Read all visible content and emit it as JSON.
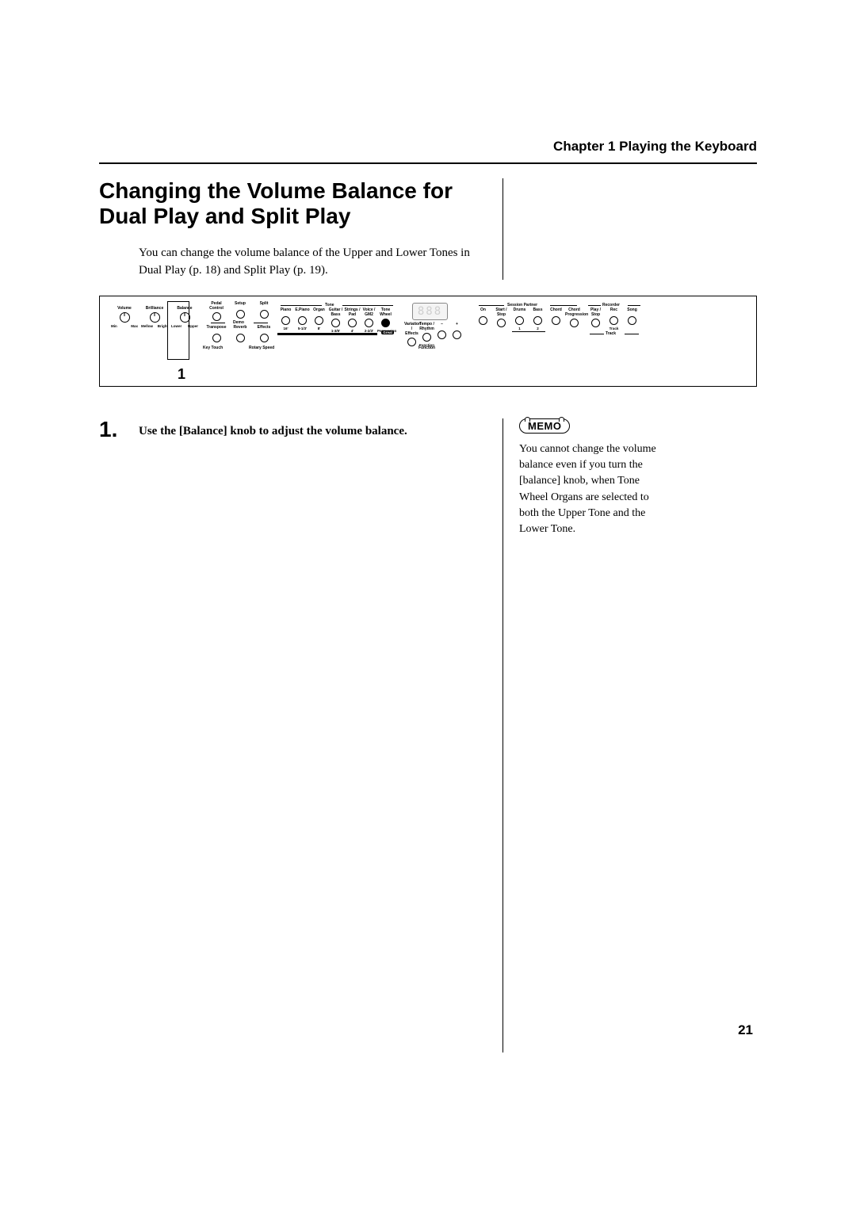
{
  "chapter_header": "Chapter 1 Playing the Keyboard",
  "section_title": "Changing the Volume Balance for Dual Play and Split Play",
  "intro_text": "You can change the volume balance of the Upper and Lower Tones in Dual Play (p. 18) and Split Play (p. 19).",
  "panel_caption": "1",
  "step": {
    "num": "1.",
    "text": "Use the [Balance] knob to adjust the volume balance."
  },
  "memo": {
    "label": "MEMO",
    "text": "You cannot change the volume balance even if you turn the [balance] knob, when Tone Wheel Organs are selected to both the Upper Tone and the Lower Tone."
  },
  "page_number": "21",
  "panel": {
    "knobs": [
      {
        "label": "Volume",
        "left": "Min",
        "right": "Max"
      },
      {
        "label": "Brilliance",
        "left": "Mellow",
        "right": "Bright"
      },
      {
        "label": "Balance",
        "left": "Lower",
        "right": "Upper"
      }
    ],
    "top_buttons": [
      "Pedal Control",
      "Setup",
      "Split"
    ],
    "bottom_buttons": [
      "Transpose",
      "Reverb",
      "Effects"
    ],
    "demo_label": "Demo",
    "keytouch_label": "Key Touch",
    "rotary_label": "Rotary Speed",
    "tone_label": "Tone",
    "tone_buttons": [
      {
        "top": "Piano",
        "bot": "16'"
      },
      {
        "top": "E.Piano",
        "bot": "5-1/3'"
      },
      {
        "top": "Organ",
        "bot": "8'"
      },
      {
        "top": "Guitar /\nBass",
        "bot": "1-3/5'"
      },
      {
        "top": "Strings /\nPad",
        "bot": "4'"
      },
      {
        "top": "Voice /\nGM2",
        "bot": "2-2/3'"
      },
      {
        "top": "Tone\nWheel",
        "bot": "Percussion"
      }
    ],
    "aux_buttons": [
      {
        "top": "Variation /\nEffects",
        "bot": ""
      },
      {
        "top": "Tempo /\nRhythm",
        "bot": "Function"
      },
      {
        "top": "–",
        "bot": ""
      },
      {
        "top": "+",
        "bot": ""
      }
    ],
    "session_label": "Session Partner",
    "session_buttons": [
      {
        "top": "On",
        "bot": ""
      },
      {
        "top": "Start /\nStop",
        "bot": ""
      },
      {
        "top": "Drums",
        "bot": "1"
      },
      {
        "top": "Bass",
        "bot": "2"
      },
      {
        "top": "Chord",
        "bot": ""
      },
      {
        "top": "Chord\nProgression",
        "bot": ""
      }
    ],
    "recorder_label": "Recorder",
    "recorder_buttons": [
      {
        "top": "Play /\nStop",
        "bot": ""
      },
      {
        "top": "Rec",
        "bot": "Track"
      },
      {
        "top": "Song",
        "bot": ""
      }
    ],
    "great_label": "Great"
  }
}
